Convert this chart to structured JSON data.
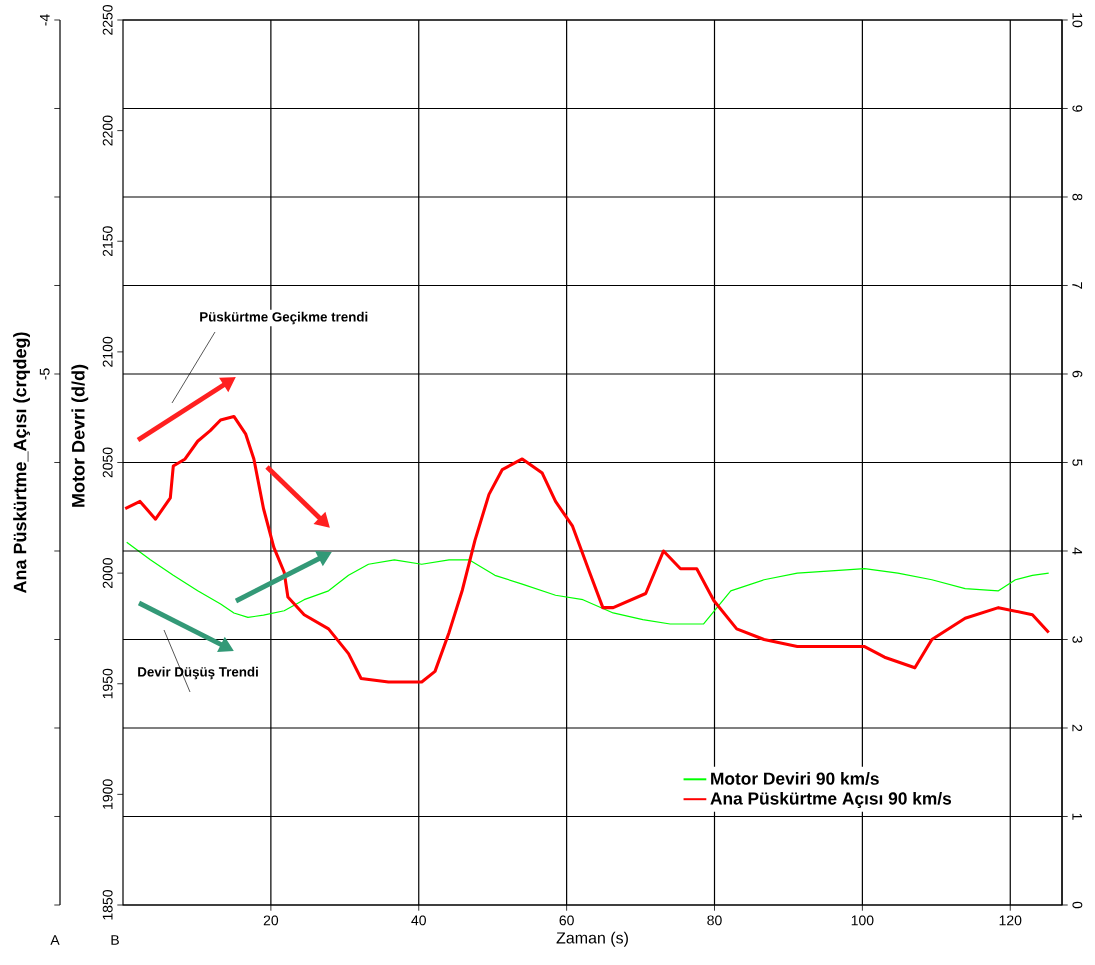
{
  "chart_data": {
    "type": "line",
    "xlabel": "Zaman (s)",
    "ylabel": "Motor Devri (d/d)",
    "y3label": "Ana  Püskürtme_Açısı (crqdeg)",
    "xlim": [
      0,
      127
    ],
    "xticks": [
      20,
      40,
      60,
      80,
      100,
      120
    ],
    "ylim": [
      1850,
      2250
    ],
    "yticks": [
      1850,
      1900,
      1950,
      2000,
      2050,
      2100,
      2150,
      2200,
      2250
    ],
    "y2lim": [
      0,
      10
    ],
    "y2ticks": [
      0,
      1,
      2,
      3,
      4,
      5,
      6,
      7,
      8,
      9,
      10
    ],
    "y3lim": [
      -6.5,
      -4
    ],
    "y3ticks": [
      -4,
      {
        "value": -4.25,
        "label": null
      },
      {
        "value": -4.5,
        "label": null
      },
      {
        "value": -4.75,
        "label": null
      },
      -5,
      {
        "value": -5.25,
        "label": null
      },
      {
        "value": -5.5,
        "label": null
      },
      {
        "value": -5.75,
        "label": null
      },
      {
        "value": -6,
        "label": null
      },
      {
        "value": -6.25,
        "label": null
      },
      {
        "value": -6.5,
        "label": null
      }
    ],
    "grid": true,
    "legend": "bottom right",
    "line_style": "solid",
    "marker": "none",
    "annotations": [
      "Püskürtme Geçikme trendi",
      "Devir Düşüş Trendi",
      "A",
      "B"
    ],
    "series": [
      {
        "name": "Motor Deviri 90 km/s",
        "color": "#00ff00",
        "axis": "y",
        "x": [
          0.5,
          3.7,
          6.8,
          10.1,
          13.2,
          15.0,
          16.9,
          19.0,
          21.8,
          24.5,
          27.8,
          30.5,
          33.2,
          36.7,
          40.4,
          44.1,
          46.8,
          50.3,
          54.0,
          58.5,
          62.2,
          66.3,
          70.3,
          74.0,
          78.5,
          82.2,
          86.7,
          91.2,
          95.8,
          100.3,
          104.8,
          109.4,
          113.9,
          118.4,
          120.7,
          123.0,
          125.2
        ],
        "values": [
          2014,
          2006,
          1999,
          1992,
          1986,
          1982,
          1980,
          1981,
          1983,
          1988,
          1992,
          1999,
          2004,
          2006,
          2004,
          2006,
          2006,
          1999,
          1995,
          1990,
          1988,
          1982,
          1979,
          1977,
          1977,
          1992,
          1997,
          2000,
          2001,
          2002,
          2000,
          1997,
          1993,
          1992,
          1997,
          1999,
          2000
        ]
      },
      {
        "name": "Ana Püskürtme Açısı 90 km/s",
        "color": "#ff0000",
        "axis": "y3",
        "x": [
          0.3,
          2.3,
          4.4,
          6.4,
          6.8,
          8.4,
          10.1,
          11.8,
          13.2,
          15.0,
          16.6,
          17.7,
          19.0,
          20.4,
          21.8,
          22.3,
          24.5,
          27.8,
          30.5,
          32.2,
          35.9,
          40.4,
          42.2,
          44.1,
          45.9,
          47.6,
          49.5,
          51.3,
          54.0,
          56.7,
          58.5,
          60.8,
          63.1,
          64.9,
          66.3,
          70.7,
          73.1,
          75.4,
          77.6,
          79.9,
          83.0,
          86.7,
          91.2,
          95.8,
          100.3,
          103.0,
          107.1,
          109.4,
          113.9,
          118.4,
          123.0,
          125.2
        ],
        "values": [
          -5.38,
          -5.36,
          -5.41,
          -5.35,
          -5.26,
          -5.24,
          -5.19,
          -5.16,
          -5.13,
          -5.12,
          -5.17,
          -5.24,
          -5.38,
          -5.49,
          -5.56,
          -5.63,
          -5.68,
          -5.72,
          -5.79,
          -5.86,
          -5.87,
          -5.87,
          -5.84,
          -5.73,
          -5.61,
          -5.47,
          -5.34,
          -5.27,
          -5.24,
          -5.28,
          -5.36,
          -5.43,
          -5.56,
          -5.66,
          -5.66,
          -5.62,
          -5.5,
          -5.55,
          -5.55,
          -5.64,
          -5.72,
          -5.75,
          -5.77,
          -5.77,
          -5.77,
          -5.8,
          -5.83,
          -5.75,
          -5.69,
          -5.66,
          -5.68,
          -5.73
        ]
      }
    ]
  }
}
